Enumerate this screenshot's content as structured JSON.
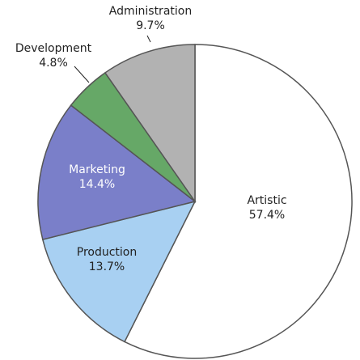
{
  "chart_data": {
    "type": "pie",
    "categories": [
      "Artistic",
      "Production",
      "Marketing",
      "Development",
      "Administration"
    ],
    "values": [
      57.4,
      13.7,
      14.4,
      4.8,
      9.7
    ],
    "value_labels": [
      "57.4%",
      "13.7%",
      "14.4%",
      "4.8%",
      "9.7%"
    ],
    "colors": [
      "#ffffff",
      "#a8d0f2",
      "#7a7fc9",
      "#66a867",
      "#b2b2b2"
    ]
  }
}
